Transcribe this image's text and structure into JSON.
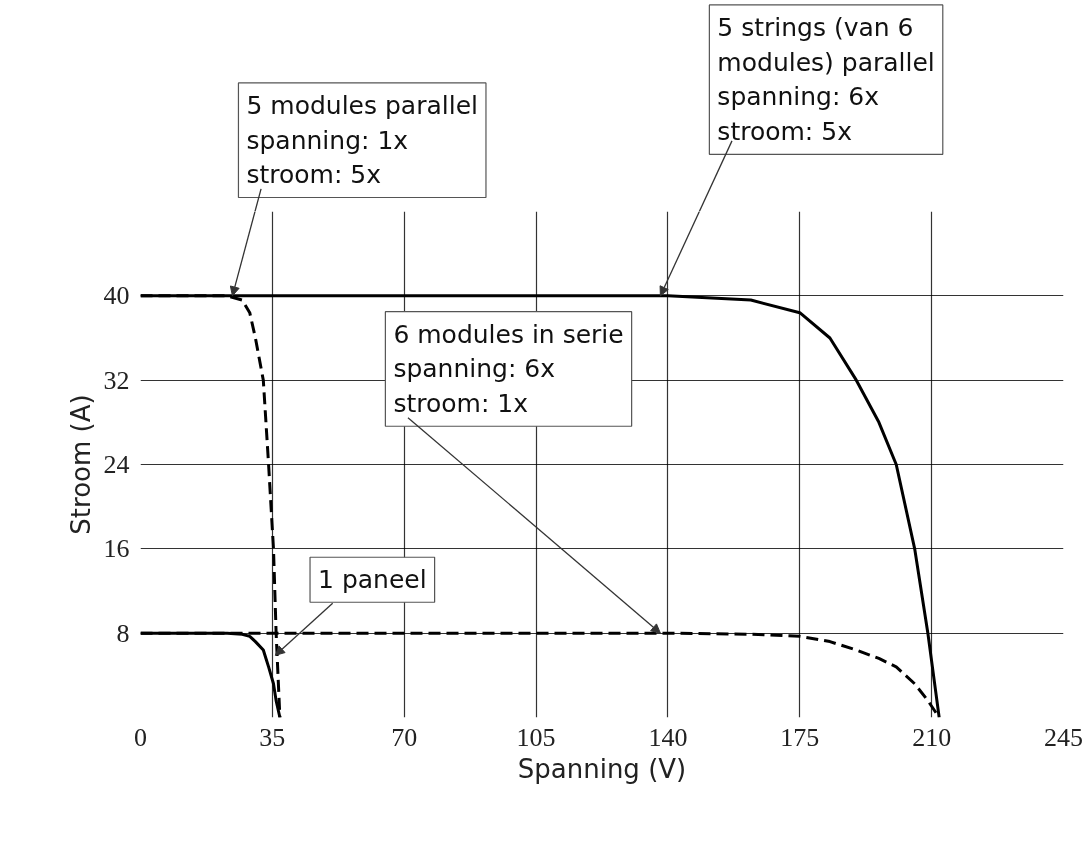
{
  "chart_data": {
    "type": "line",
    "xlabel": "Spanning (V)",
    "ylabel": "Stroom (A)",
    "xlim": [
      0,
      245
    ],
    "xticks": [
      0,
      35,
      70,
      105,
      140,
      175,
      210,
      245
    ],
    "ylim": [
      0,
      48
    ],
    "yticks": [
      8,
      16,
      24,
      32,
      40
    ],
    "grid": true,
    "marker": "none",
    "series": [
      {
        "color": "#000000",
        "line_style": "solid",
        "x": [
          0,
          140,
          162,
          175,
          183,
          190,
          196,
          200.6,
          205.5,
          209,
          212
        ],
        "values": [
          40,
          40,
          39.6,
          38.4,
          36,
          32,
          28,
          24,
          16,
          8,
          0
        ]
      },
      {
        "color": "#000000",
        "line_style": "dashed",
        "x": [
          0,
          140,
          162,
          175,
          183,
          190,
          196,
          200.6,
          205.5,
          209,
          212
        ],
        "values": [
          8,
          8,
          7.9,
          7.7,
          7.2,
          6.4,
          5.6,
          4.8,
          3.2,
          1.6,
          0
        ]
      },
      {
        "color": "#000000",
        "line_style": "dashed",
        "x": [
          0,
          23,
          27,
          29,
          30.5,
          32.6,
          33.3,
          34,
          35.3,
          36,
          37
        ],
        "values": [
          40,
          40,
          39.6,
          38.4,
          36,
          32,
          28,
          24,
          16,
          8,
          0
        ]
      },
      {
        "color": "#000000",
        "line_style": "solid",
        "x": [
          0,
          23,
          27,
          29,
          30.5,
          32.6,
          33.3,
          34,
          35.3,
          36,
          37
        ],
        "values": [
          8,
          8,
          7.9,
          7.7,
          7.2,
          6.4,
          5.6,
          4.8,
          3.2,
          1.6,
          0
        ]
      }
    ],
    "annotations": [
      {
        "text": "5 modules parallel\nspanning: 1x\nstroom: 5x",
        "x": 24.4,
        "y": 40
      },
      {
        "text": "5 strings (van 6\nmodules) parallel\nspanning: 6x\nstroom: 5x",
        "x": 138,
        "y": 40
      },
      {
        "text": "6 modules in serie\nspanning: 6x\nstroom: 1x",
        "x": 138,
        "y": 8
      },
      {
        "text": "1 paneel",
        "x": 35.8,
        "y": 5.9
      }
    ]
  }
}
